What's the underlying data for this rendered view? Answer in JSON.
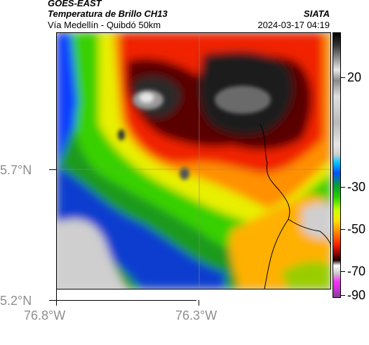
{
  "header": {
    "satellite": "GOES-EAST",
    "product": "Temperatura de Brillo CH13",
    "region": "Vía Medellín - Quibdó 50km",
    "brand": "SIATA",
    "timestamp": "2024-03-17 04:19"
  },
  "axes": {
    "lon_ticks": [
      "76.8°W",
      "76.3°W"
    ],
    "lat_ticks": [
      "5.7°N",
      "5.2°N"
    ]
  },
  "colorbar": {
    "ticks": [
      "20",
      "-30",
      "-50",
      "-70",
      "-90"
    ]
  },
  "colors": {
    "cold_cloud": "#1a1a1a",
    "warm_surface": "#d0d0d0",
    "border_line": "#000000"
  }
}
